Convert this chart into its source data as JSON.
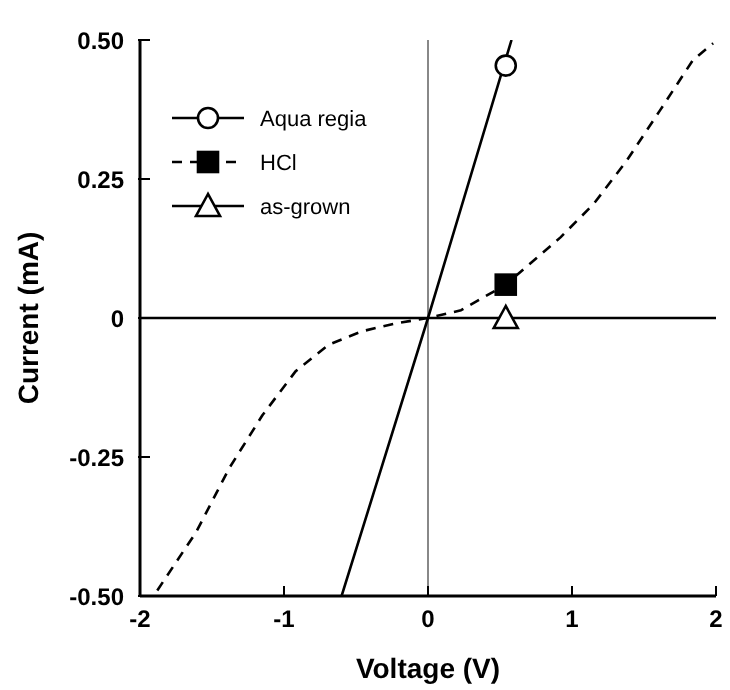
{
  "chart_data": {
    "type": "line",
    "xlabel": "Voltage (V)",
    "ylabel": "Current (mA)",
    "xlim": [
      -2,
      2
    ],
    "ylim": [
      -0.5,
      0.5
    ],
    "xticks": [
      -2,
      -1,
      0,
      1,
      2
    ],
    "yticks": [
      {
        "value": -0.5,
        "label": "-0.50"
      },
      -0.25,
      0,
      0.25,
      {
        "value": 0.5,
        "label": "0.50"
      }
    ],
    "grid": false,
    "legend": "top left",
    "ref_lines": [
      {
        "axis": "x",
        "value": 0,
        "color": "#888888"
      }
    ],
    "series": [
      {
        "name": "Aqua regia",
        "color": "#000000",
        "line_style": "solid",
        "x": [
          -0.6,
          0,
          0.58
        ],
        "values": [
          -0.5,
          0,
          0.5
        ]
      },
      {
        "name": "HCl",
        "color": "#000000",
        "line_style": "dashed",
        "x": [
          -1.88,
          -1.61,
          -1.38,
          -1.15,
          -0.92,
          -0.69,
          -0.46,
          -0.23,
          0,
          0.23,
          0.54,
          0.92,
          1.15,
          1.38,
          1.61,
          1.84,
          1.98
        ],
        "values": [
          -0.49,
          -0.385,
          -0.27,
          -0.175,
          -0.096,
          -0.048,
          -0.024,
          -0.01,
          0,
          0.014,
          0.06,
          0.145,
          0.205,
          0.283,
          0.373,
          0.464,
          0.494
        ]
      },
      {
        "name": "as-grown",
        "color": "#000000",
        "line_style": "solid",
        "x": [
          -2,
          2
        ],
        "values": [
          0,
          0
        ]
      },
      {
        "type": "scatter",
        "color": "#000000",
        "marker": "circle",
        "x": [
          0.54
        ],
        "values": [
          0.454
        ]
      },
      {
        "type": "scatter",
        "color": "#000000",
        "marker": "square",
        "x": [
          0.54
        ],
        "values": [
          0.06
        ]
      },
      {
        "type": "scatter",
        "color": "#000000",
        "marker": "triangle",
        "x": [
          0.54
        ],
        "values": [
          0
        ]
      }
    ]
  }
}
